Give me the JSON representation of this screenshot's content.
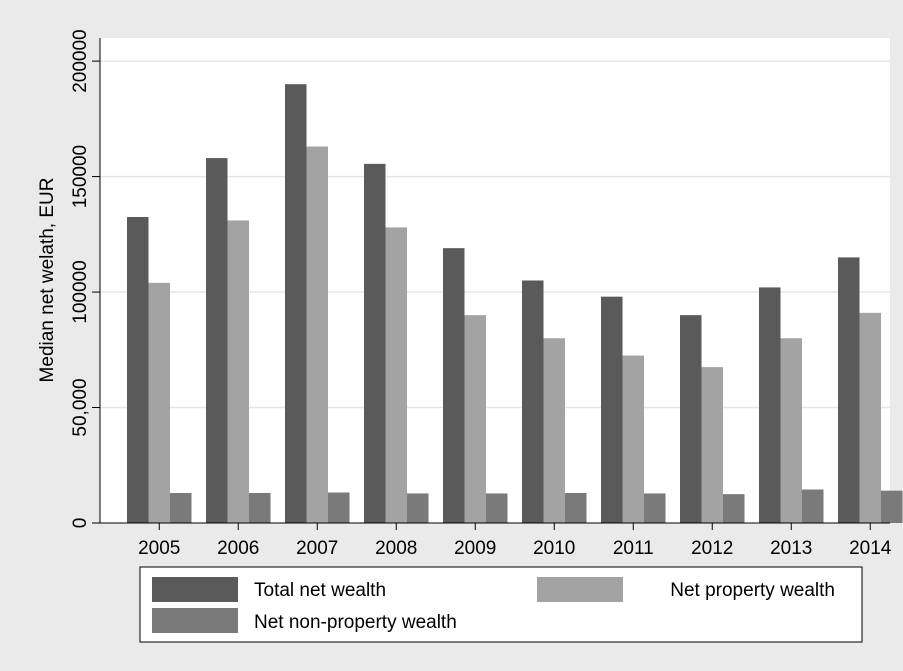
{
  "chart_data": {
    "type": "bar",
    "title": "",
    "xlabel": "",
    "ylabel": "Median net welath, EUR",
    "ylim": [
      0,
      210000
    ],
    "yticks": [
      {
        "value": 0,
        "label": "0"
      },
      {
        "value": 50000,
        "label": "50,000"
      },
      {
        "value": 100000,
        "label": "100000"
      },
      {
        "value": 150000,
        "label": "150000"
      },
      {
        "value": 200000,
        "label": "200000"
      }
    ],
    "grid": true,
    "legend_position": "bottom",
    "categories": [
      "2005",
      "2006",
      "2007",
      "2008",
      "2009",
      "2010",
      "2011",
      "2012",
      "2013",
      "2014"
    ],
    "series": [
      {
        "name": "Total net wealth",
        "color": "#5a5a5a",
        "values": [
          132500,
          158000,
          190000,
          155500,
          119000,
          105000,
          98000,
          90000,
          102000,
          115000
        ]
      },
      {
        "name": "Net property wealth",
        "color": "#a3a3a3",
        "values": [
          104000,
          131000,
          163000,
          128000,
          90000,
          80000,
          72500,
          67500,
          80000,
          91000
        ]
      },
      {
        "name": "Net non-property wealth",
        "color": "#7a7a7a",
        "values": [
          13000,
          13000,
          13200,
          12800,
          12800,
          13000,
          12800,
          12500,
          14500,
          14000
        ]
      }
    ]
  }
}
